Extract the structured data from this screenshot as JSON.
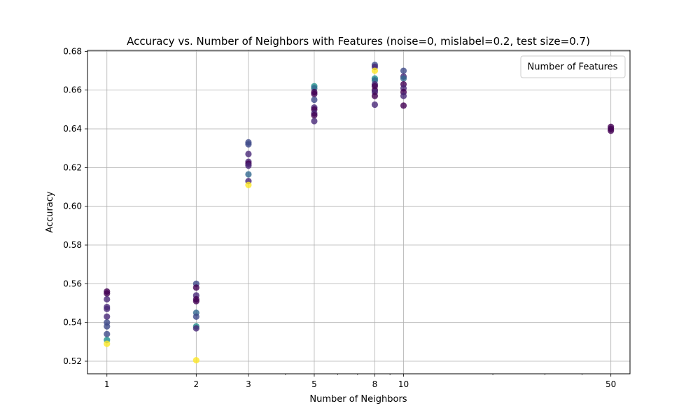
{
  "chart_data": {
    "type": "scatter",
    "title": "Accuracy vs. Number of Neighbors with Features (noise=0, mislabel=0.2, test size=0.7)",
    "xlabel": "Number of Neighbors",
    "ylabel": "Accuracy",
    "xscale": "log",
    "xlim": [
      0.86,
      58
    ],
    "ylim": [
      0.5135,
      0.6805
    ],
    "xticks": [
      1,
      2,
      3,
      5,
      8,
      10,
      50
    ],
    "yticks": [
      0.52,
      0.54,
      0.56,
      0.58,
      0.6,
      0.62,
      0.64,
      0.66,
      0.68
    ],
    "ytick_labels": [
      "0.52",
      "0.54",
      "0.56",
      "0.58",
      "0.60",
      "0.62",
      "0.64",
      "0.66",
      "0.68"
    ],
    "grid": true,
    "legend": {
      "title": "Number of Features",
      "placement": "top-right"
    },
    "colormap": "viridis",
    "colors": {
      "dark_purple": "#440154",
      "purple": "#482878",
      "slate": "#3e4a89",
      "blue_grey": "#31688e",
      "teal": "#21918c",
      "yellow": "#fde725"
    },
    "points": [
      {
        "x": 1,
        "y": 0.556,
        "c": "dark_purple"
      },
      {
        "x": 1,
        "y": 0.555,
        "c": "dark_purple"
      },
      {
        "x": 1,
        "y": 0.552,
        "c": "purple"
      },
      {
        "x": 1,
        "y": 0.548,
        "c": "purple"
      },
      {
        "x": 1,
        "y": 0.547,
        "c": "purple"
      },
      {
        "x": 1,
        "y": 0.543,
        "c": "purple"
      },
      {
        "x": 1,
        "y": 0.54,
        "c": "slate"
      },
      {
        "x": 1,
        "y": 0.538,
        "c": "slate"
      },
      {
        "x": 1,
        "y": 0.534,
        "c": "slate"
      },
      {
        "x": 1,
        "y": 0.531,
        "c": "teal"
      },
      {
        "x": 1,
        "y": 0.529,
        "c": "yellow"
      },
      {
        "x": 2,
        "y": 0.56,
        "c": "slate"
      },
      {
        "x": 2,
        "y": 0.558,
        "c": "dark_purple"
      },
      {
        "x": 2,
        "y": 0.554,
        "c": "purple"
      },
      {
        "x": 2,
        "y": 0.552,
        "c": "dark_purple"
      },
      {
        "x": 2,
        "y": 0.551,
        "c": "dark_purple"
      },
      {
        "x": 2,
        "y": 0.545,
        "c": "blue_grey"
      },
      {
        "x": 2,
        "y": 0.543,
        "c": "slate"
      },
      {
        "x": 2,
        "y": 0.538,
        "c": "teal"
      },
      {
        "x": 2,
        "y": 0.537,
        "c": "purple"
      },
      {
        "x": 2,
        "y": 0.5205,
        "c": "yellow"
      },
      {
        "x": 3,
        "y": 0.633,
        "c": "slate"
      },
      {
        "x": 3,
        "y": 0.632,
        "c": "slate"
      },
      {
        "x": 3,
        "y": 0.627,
        "c": "purple"
      },
      {
        "x": 3,
        "y": 0.623,
        "c": "purple"
      },
      {
        "x": 3,
        "y": 0.622,
        "c": "dark_purple"
      },
      {
        "x": 3,
        "y": 0.621,
        "c": "purple"
      },
      {
        "x": 3,
        "y": 0.6165,
        "c": "blue_grey"
      },
      {
        "x": 3,
        "y": 0.613,
        "c": "purple"
      },
      {
        "x": 3,
        "y": 0.611,
        "c": "yellow"
      },
      {
        "x": 5,
        "y": 0.662,
        "c": "teal"
      },
      {
        "x": 5,
        "y": 0.661,
        "c": "blue_grey"
      },
      {
        "x": 5,
        "y": 0.659,
        "c": "dark_purple"
      },
      {
        "x": 5,
        "y": 0.658,
        "c": "dark_purple"
      },
      {
        "x": 5,
        "y": 0.655,
        "c": "slate"
      },
      {
        "x": 5,
        "y": 0.651,
        "c": "purple"
      },
      {
        "x": 5,
        "y": 0.65,
        "c": "dark_purple"
      },
      {
        "x": 5,
        "y": 0.648,
        "c": "purple"
      },
      {
        "x": 5,
        "y": 0.647,
        "c": "dark_purple"
      },
      {
        "x": 5,
        "y": 0.644,
        "c": "purple"
      },
      {
        "x": 8,
        "y": 0.673,
        "c": "slate"
      },
      {
        "x": 8,
        "y": 0.672,
        "c": "purple"
      },
      {
        "x": 8,
        "y": 0.67,
        "c": "yellow"
      },
      {
        "x": 8,
        "y": 0.666,
        "c": "teal"
      },
      {
        "x": 8,
        "y": 0.665,
        "c": "blue_grey"
      },
      {
        "x": 8,
        "y": 0.663,
        "c": "purple"
      },
      {
        "x": 8,
        "y": 0.662,
        "c": "dark_purple"
      },
      {
        "x": 8,
        "y": 0.66,
        "c": "dark_purple"
      },
      {
        "x": 8,
        "y": 0.659,
        "c": "purple"
      },
      {
        "x": 8,
        "y": 0.657,
        "c": "dark_purple"
      },
      {
        "x": 8,
        "y": 0.6525,
        "c": "purple"
      },
      {
        "x": 10,
        "y": 0.67,
        "c": "slate"
      },
      {
        "x": 10,
        "y": 0.667,
        "c": "purple"
      },
      {
        "x": 10,
        "y": 0.666,
        "c": "blue_grey"
      },
      {
        "x": 10,
        "y": 0.663,
        "c": "dark_purple"
      },
      {
        "x": 10,
        "y": 0.661,
        "c": "purple"
      },
      {
        "x": 10,
        "y": 0.659,
        "c": "dark_purple"
      },
      {
        "x": 10,
        "y": 0.657,
        "c": "purple"
      },
      {
        "x": 10,
        "y": 0.652,
        "c": "dark_purple"
      },
      {
        "x": 50,
        "y": 0.641,
        "c": "dark_purple"
      },
      {
        "x": 50,
        "y": 0.64,
        "c": "dark_purple"
      },
      {
        "x": 50,
        "y": 0.639,
        "c": "dark_purple"
      }
    ]
  }
}
